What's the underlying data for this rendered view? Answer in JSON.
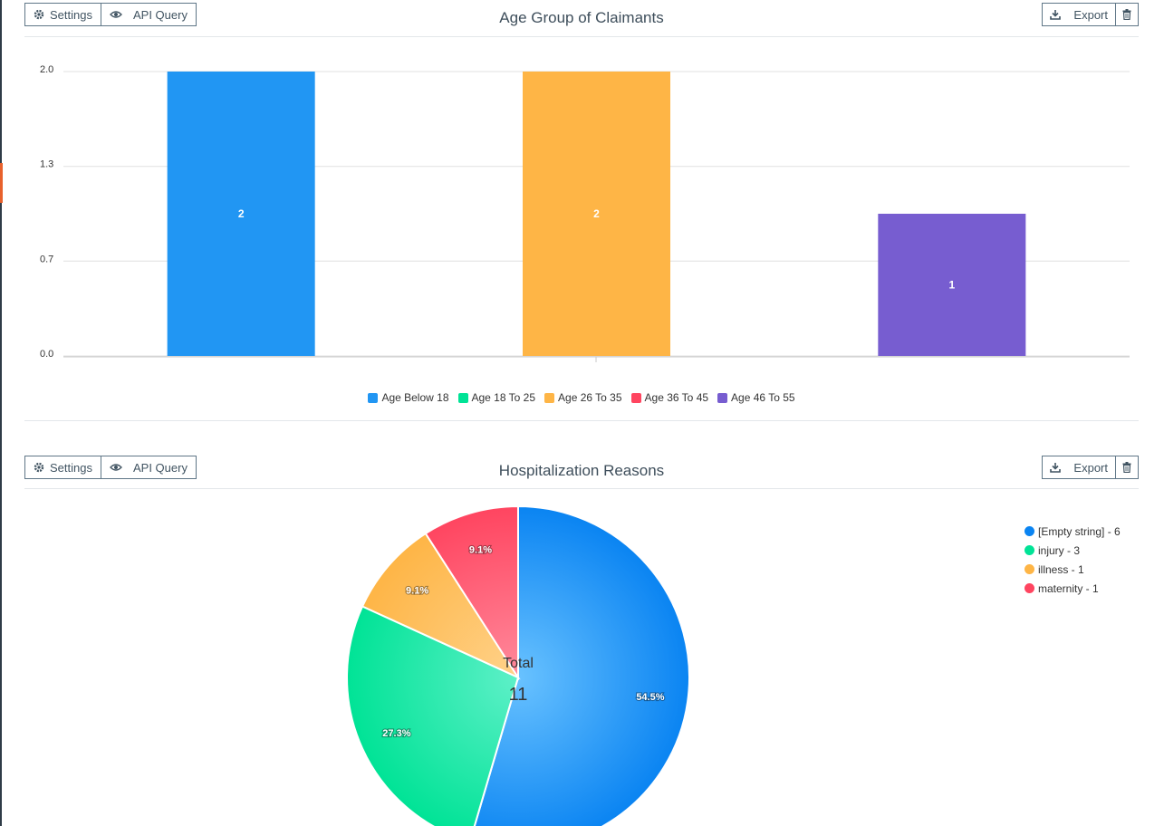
{
  "colors": {
    "blue": "#2196f3",
    "green": "#00e396",
    "orange": "#feb546",
    "red": "#ff4560",
    "purple": "#775dd0"
  },
  "toolbar": {
    "settings_label": "Settings",
    "api_query_label": "API Query",
    "export_label": "Export"
  },
  "bar_panel": {
    "title": "Age Group of Claimants",
    "chart_data": {
      "type": "bar",
      "title": "Age Group of Claimants",
      "categories": [
        "Age Below 18",
        "Age 26 To 35",
        "Age 46 To 55"
      ],
      "values": [
        2,
        2,
        1
      ],
      "data_labels": [
        "2",
        "2",
        "1"
      ],
      "bar_colors": [
        "#2196f3",
        "#feb546",
        "#775dd0"
      ],
      "y_ticks": [
        "2.0",
        "1.3",
        "0.7",
        "0.0"
      ],
      "y_tick_values": [
        2.0,
        1.333,
        0.667,
        0.0
      ],
      "ylim": [
        0,
        2
      ],
      "grid": true,
      "legend_position": "bottom",
      "legend": [
        {
          "label": "Age Below 18",
          "color": "#2196f3"
        },
        {
          "label": "Age 18 To 25",
          "color": "#00e396"
        },
        {
          "label": "Age 26 To 35",
          "color": "#feb546"
        },
        {
          "label": "Age 36 To 45",
          "color": "#ff4560"
        },
        {
          "label": "Age 46 To 55",
          "color": "#775dd0"
        }
      ]
    }
  },
  "pie_panel": {
    "title": "Hospitalization Reasons",
    "total_label": "Total",
    "total_value": "11",
    "chart_data": {
      "type": "pie",
      "title": "Hospitalization Reasons",
      "slices": [
        {
          "label": "[Empty string]",
          "value": 6,
          "percent": "54.5%",
          "color": "#0a84f2",
          "color_light": "#69c2ff"
        },
        {
          "label": "injury",
          "value": 3,
          "percent": "27.3%",
          "color": "#00e396",
          "color_light": "#5ef0c8"
        },
        {
          "label": "illness",
          "value": 1,
          "percent": "9.1%",
          "color": "#feb546",
          "color_light": "#ffd28a"
        },
        {
          "label": "maternity",
          "value": 1,
          "percent": "9.1%",
          "color": "#ff4560",
          "color_light": "#ff8a9c"
        }
      ],
      "legend_position": "top-right",
      "legend": [
        "[Empty string] - 6",
        "injury - 3",
        "illness - 1",
        "maternity - 1"
      ]
    }
  }
}
